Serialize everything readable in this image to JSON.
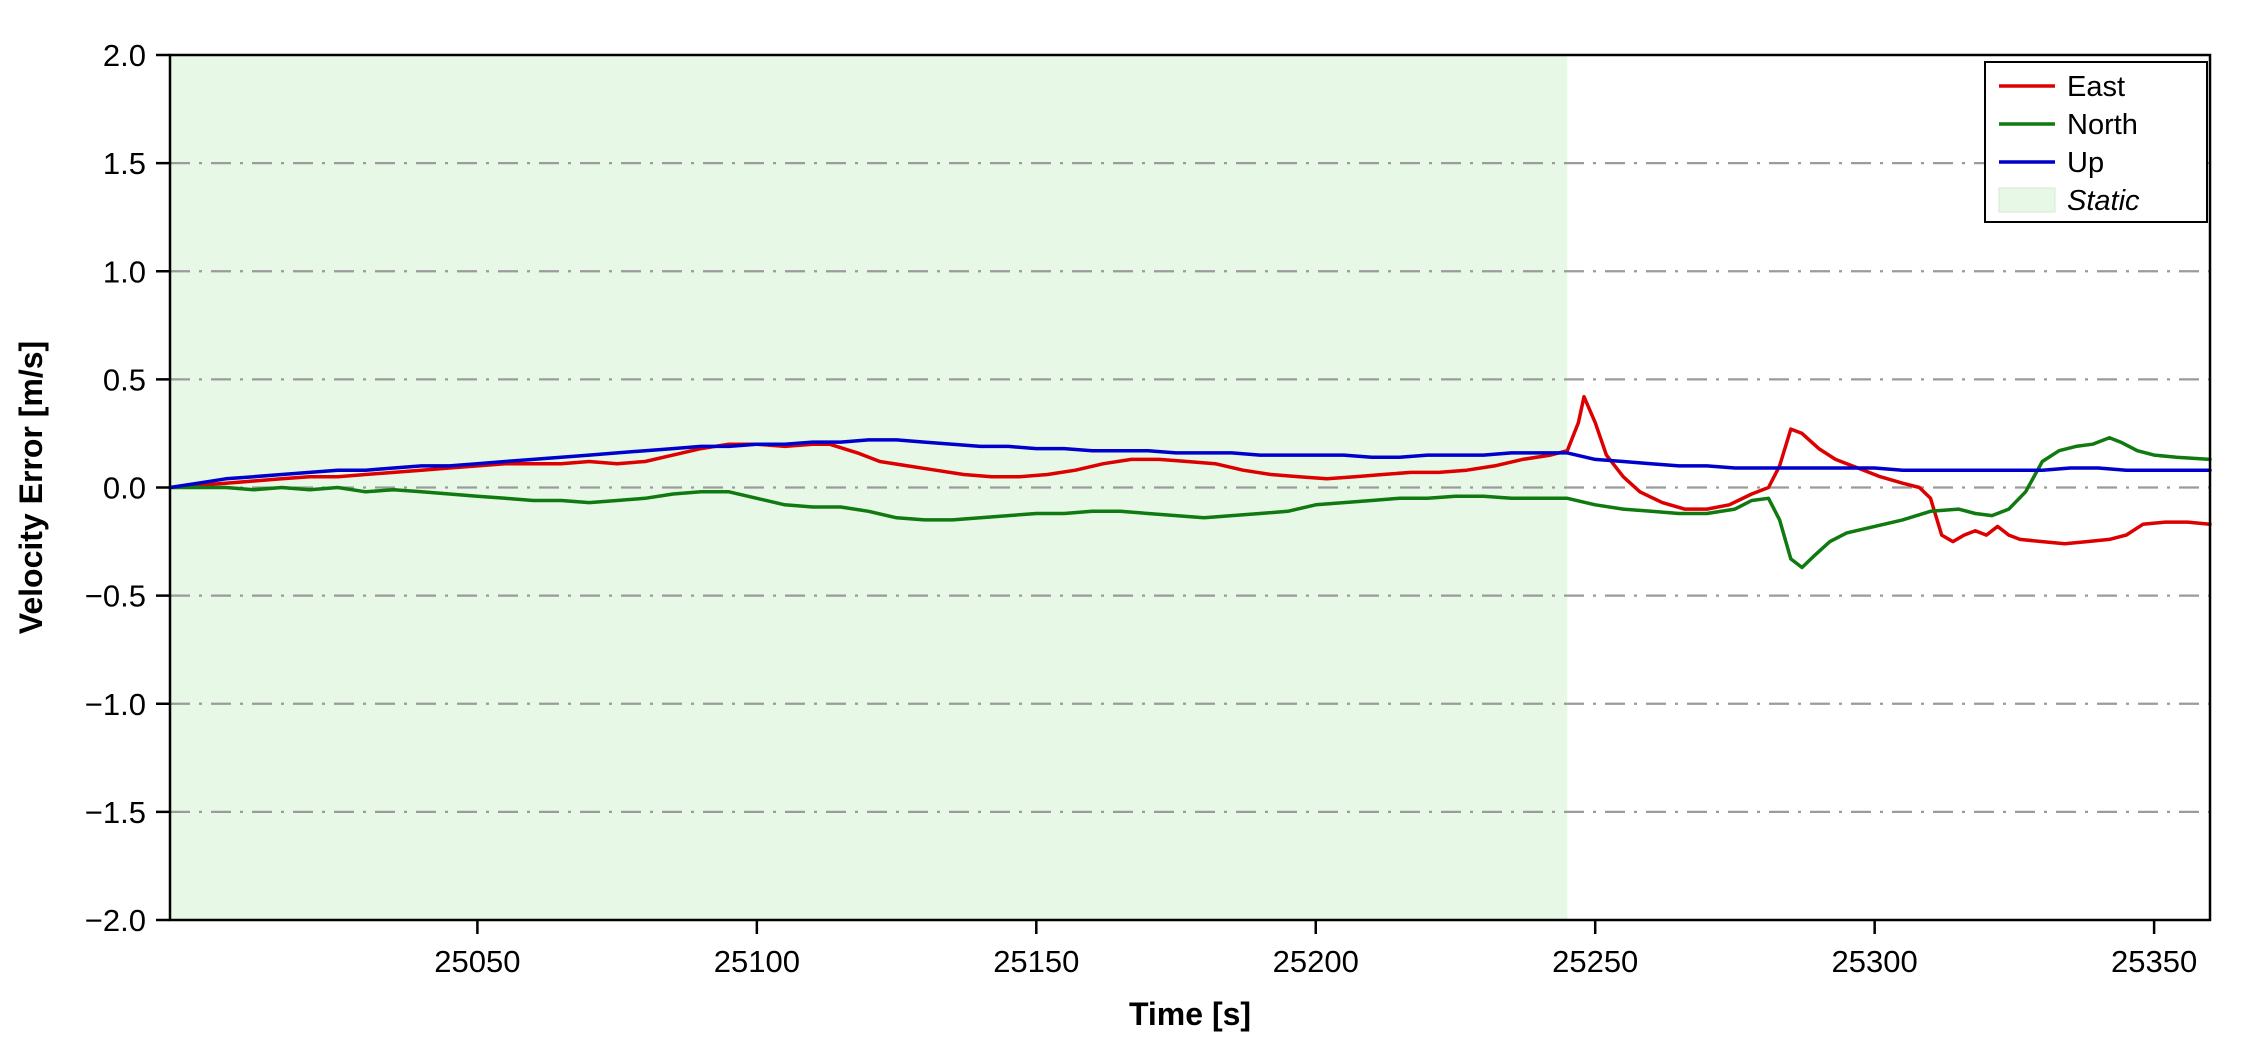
{
  "chart_data": {
    "type": "line",
    "title": "",
    "xlabel": "Time [s]",
    "ylabel": "Velocity Error [m/s]",
    "xlim": [
      24995,
      25360
    ],
    "ylim": [
      -2.0,
      2.0
    ],
    "xticks": [
      25050,
      25100,
      25150,
      25200,
      25250,
      25300,
      25350
    ],
    "yticks": [
      -2.0,
      -1.5,
      -1.0,
      -0.5,
      0.0,
      0.5,
      1.0,
      1.5,
      2.0
    ],
    "grid": {
      "style": "dash-dot",
      "color": "#9b9b9b",
      "y_values": [
        -1.5,
        -1.0,
        -0.5,
        0.0,
        0.5,
        1.0,
        1.5
      ]
    },
    "static_region": {
      "label": "Static",
      "x_start": 24995,
      "x_end": 25245,
      "color": "#e7f8e7"
    },
    "legend": {
      "position": "top-right",
      "entries": [
        {
          "label": "East",
          "color": "#dd0000",
          "swatch": "line",
          "italic": false
        },
        {
          "label": "North",
          "color": "#107a10",
          "swatch": "line",
          "italic": false
        },
        {
          "label": "Up",
          "color": "#0000cc",
          "swatch": "line",
          "italic": false
        },
        {
          "label": "Static",
          "color": "#e7f8e7",
          "swatch": "patch",
          "italic": true
        }
      ]
    },
    "series": [
      {
        "name": "East",
        "color": "#dd0000",
        "points": [
          [
            24995,
            0.0
          ],
          [
            25000,
            0.01
          ],
          [
            25005,
            0.02
          ],
          [
            25010,
            0.03
          ],
          [
            25015,
            0.04
          ],
          [
            25020,
            0.05
          ],
          [
            25025,
            0.05
          ],
          [
            25030,
            0.06
          ],
          [
            25035,
            0.07
          ],
          [
            25040,
            0.08
          ],
          [
            25045,
            0.09
          ],
          [
            25050,
            0.1
          ],
          [
            25055,
            0.11
          ],
          [
            25060,
            0.11
          ],
          [
            25065,
            0.11
          ],
          [
            25070,
            0.12
          ],
          [
            25075,
            0.11
          ],
          [
            25080,
            0.12
          ],
          [
            25085,
            0.15
          ],
          [
            25090,
            0.18
          ],
          [
            25095,
            0.2
          ],
          [
            25100,
            0.2
          ],
          [
            25105,
            0.19
          ],
          [
            25110,
            0.2
          ],
          [
            25113,
            0.2
          ],
          [
            25118,
            0.16
          ],
          [
            25122,
            0.12
          ],
          [
            25127,
            0.1
          ],
          [
            25132,
            0.08
          ],
          [
            25137,
            0.06
          ],
          [
            25142,
            0.05
          ],
          [
            25147,
            0.05
          ],
          [
            25152,
            0.06
          ],
          [
            25157,
            0.08
          ],
          [
            25162,
            0.11
          ],
          [
            25167,
            0.13
          ],
          [
            25172,
            0.13
          ],
          [
            25177,
            0.12
          ],
          [
            25182,
            0.11
          ],
          [
            25187,
            0.08
          ],
          [
            25192,
            0.06
          ],
          [
            25197,
            0.05
          ],
          [
            25202,
            0.04
          ],
          [
            25207,
            0.05
          ],
          [
            25212,
            0.06
          ],
          [
            25217,
            0.07
          ],
          [
            25222,
            0.07
          ],
          [
            25227,
            0.08
          ],
          [
            25232,
            0.1
          ],
          [
            25237,
            0.13
          ],
          [
            25242,
            0.15
          ],
          [
            25245,
            0.17
          ],
          [
            25247,
            0.3
          ],
          [
            25248,
            0.42
          ],
          [
            25250,
            0.3
          ],
          [
            25252,
            0.15
          ],
          [
            25255,
            0.05
          ],
          [
            25258,
            -0.02
          ],
          [
            25262,
            -0.07
          ],
          [
            25266,
            -0.1
          ],
          [
            25270,
            -0.1
          ],
          [
            25274,
            -0.08
          ],
          [
            25278,
            -0.03
          ],
          [
            25281,
            0.0
          ],
          [
            25283,
            0.1
          ],
          [
            25285,
            0.27
          ],
          [
            25287,
            0.25
          ],
          [
            25290,
            0.18
          ],
          [
            25293,
            0.13
          ],
          [
            25297,
            0.09
          ],
          [
            25301,
            0.05
          ],
          [
            25305,
            0.02
          ],
          [
            25308,
            0.0
          ],
          [
            25310,
            -0.05
          ],
          [
            25312,
            -0.22
          ],
          [
            25314,
            -0.25
          ],
          [
            25316,
            -0.22
          ],
          [
            25318,
            -0.2
          ],
          [
            25320,
            -0.22
          ],
          [
            25322,
            -0.18
          ],
          [
            25324,
            -0.22
          ],
          [
            25326,
            -0.24
          ],
          [
            25330,
            -0.25
          ],
          [
            25334,
            -0.26
          ],
          [
            25338,
            -0.25
          ],
          [
            25342,
            -0.24
          ],
          [
            25345,
            -0.22
          ],
          [
            25348,
            -0.17
          ],
          [
            25352,
            -0.16
          ],
          [
            25356,
            -0.16
          ],
          [
            25360,
            -0.17
          ]
        ]
      },
      {
        "name": "North",
        "color": "#107a10",
        "points": [
          [
            24995,
            0.0
          ],
          [
            25005,
            0.0
          ],
          [
            25010,
            -0.01
          ],
          [
            25015,
            0.0
          ],
          [
            25020,
            -0.01
          ],
          [
            25025,
            0.0
          ],
          [
            25030,
            -0.02
          ],
          [
            25035,
            -0.01
          ],
          [
            25040,
            -0.02
          ],
          [
            25045,
            -0.03
          ],
          [
            25050,
            -0.04
          ],
          [
            25055,
            -0.05
          ],
          [
            25060,
            -0.06
          ],
          [
            25065,
            -0.06
          ],
          [
            25070,
            -0.07
          ],
          [
            25075,
            -0.06
          ],
          [
            25080,
            -0.05
          ],
          [
            25085,
            -0.03
          ],
          [
            25090,
            -0.02
          ],
          [
            25095,
            -0.02
          ],
          [
            25100,
            -0.05
          ],
          [
            25105,
            -0.08
          ],
          [
            25110,
            -0.09
          ],
          [
            25115,
            -0.09
          ],
          [
            25120,
            -0.11
          ],
          [
            25125,
            -0.14
          ],
          [
            25130,
            -0.15
          ],
          [
            25135,
            -0.15
          ],
          [
            25140,
            -0.14
          ],
          [
            25145,
            -0.13
          ],
          [
            25150,
            -0.12
          ],
          [
            25155,
            -0.12
          ],
          [
            25160,
            -0.11
          ],
          [
            25165,
            -0.11
          ],
          [
            25170,
            -0.12
          ],
          [
            25175,
            -0.13
          ],
          [
            25180,
            -0.14
          ],
          [
            25185,
            -0.13
          ],
          [
            25190,
            -0.12
          ],
          [
            25195,
            -0.11
          ],
          [
            25200,
            -0.08
          ],
          [
            25205,
            -0.07
          ],
          [
            25210,
            -0.06
          ],
          [
            25215,
            -0.05
          ],
          [
            25220,
            -0.05
          ],
          [
            25225,
            -0.04
          ],
          [
            25230,
            -0.04
          ],
          [
            25235,
            -0.05
          ],
          [
            25240,
            -0.05
          ],
          [
            25245,
            -0.05
          ],
          [
            25250,
            -0.08
          ],
          [
            25255,
            -0.1
          ],
          [
            25260,
            -0.11
          ],
          [
            25265,
            -0.12
          ],
          [
            25270,
            -0.12
          ],
          [
            25275,
            -0.1
          ],
          [
            25278,
            -0.06
          ],
          [
            25281,
            -0.05
          ],
          [
            25283,
            -0.15
          ],
          [
            25285,
            -0.33
          ],
          [
            25287,
            -0.37
          ],
          [
            25289,
            -0.32
          ],
          [
            25292,
            -0.25
          ],
          [
            25295,
            -0.21
          ],
          [
            25300,
            -0.18
          ],
          [
            25305,
            -0.15
          ],
          [
            25310,
            -0.11
          ],
          [
            25315,
            -0.1
          ],
          [
            25318,
            -0.12
          ],
          [
            25321,
            -0.13
          ],
          [
            25324,
            -0.1
          ],
          [
            25327,
            -0.02
          ],
          [
            25330,
            0.12
          ],
          [
            25333,
            0.17
          ],
          [
            25336,
            0.19
          ],
          [
            25339,
            0.2
          ],
          [
            25342,
            0.23
          ],
          [
            25344,
            0.21
          ],
          [
            25347,
            0.17
          ],
          [
            25350,
            0.15
          ],
          [
            25354,
            0.14
          ],
          [
            25360,
            0.13
          ]
        ]
      },
      {
        "name": "Up",
        "color": "#0000cc",
        "points": [
          [
            24995,
            0.0
          ],
          [
            25000,
            0.02
          ],
          [
            25005,
            0.04
          ],
          [
            25010,
            0.05
          ],
          [
            25015,
            0.06
          ],
          [
            25020,
            0.07
          ],
          [
            25025,
            0.08
          ],
          [
            25030,
            0.08
          ],
          [
            25035,
            0.09
          ],
          [
            25040,
            0.1
          ],
          [
            25045,
            0.1
          ],
          [
            25050,
            0.11
          ],
          [
            25055,
            0.12
          ],
          [
            25060,
            0.13
          ],
          [
            25065,
            0.14
          ],
          [
            25070,
            0.15
          ],
          [
            25075,
            0.16
          ],
          [
            25080,
            0.17
          ],
          [
            25085,
            0.18
          ],
          [
            25090,
            0.19
          ],
          [
            25095,
            0.19
          ],
          [
            25100,
            0.2
          ],
          [
            25105,
            0.2
          ],
          [
            25110,
            0.21
          ],
          [
            25115,
            0.21
          ],
          [
            25120,
            0.22
          ],
          [
            25125,
            0.22
          ],
          [
            25130,
            0.21
          ],
          [
            25135,
            0.2
          ],
          [
            25140,
            0.19
          ],
          [
            25145,
            0.19
          ],
          [
            25150,
            0.18
          ],
          [
            25155,
            0.18
          ],
          [
            25160,
            0.17
          ],
          [
            25165,
            0.17
          ],
          [
            25170,
            0.17
          ],
          [
            25175,
            0.16
          ],
          [
            25180,
            0.16
          ],
          [
            25185,
            0.16
          ],
          [
            25190,
            0.15
          ],
          [
            25195,
            0.15
          ],
          [
            25200,
            0.15
          ],
          [
            25205,
            0.15
          ],
          [
            25210,
            0.14
          ],
          [
            25215,
            0.14
          ],
          [
            25220,
            0.15
          ],
          [
            25225,
            0.15
          ],
          [
            25230,
            0.15
          ],
          [
            25235,
            0.16
          ],
          [
            25240,
            0.16
          ],
          [
            25245,
            0.16
          ],
          [
            25250,
            0.13
          ],
          [
            25255,
            0.12
          ],
          [
            25260,
            0.11
          ],
          [
            25265,
            0.1
          ],
          [
            25270,
            0.1
          ],
          [
            25275,
            0.09
          ],
          [
            25280,
            0.09
          ],
          [
            25285,
            0.09
          ],
          [
            25290,
            0.09
          ],
          [
            25295,
            0.09
          ],
          [
            25300,
            0.09
          ],
          [
            25305,
            0.08
          ],
          [
            25310,
            0.08
          ],
          [
            25315,
            0.08
          ],
          [
            25320,
            0.08
          ],
          [
            25325,
            0.08
          ],
          [
            25330,
            0.08
          ],
          [
            25335,
            0.09
          ],
          [
            25340,
            0.09
          ],
          [
            25345,
            0.08
          ],
          [
            25350,
            0.08
          ],
          [
            25355,
            0.08
          ],
          [
            25360,
            0.08
          ]
        ]
      }
    ]
  }
}
